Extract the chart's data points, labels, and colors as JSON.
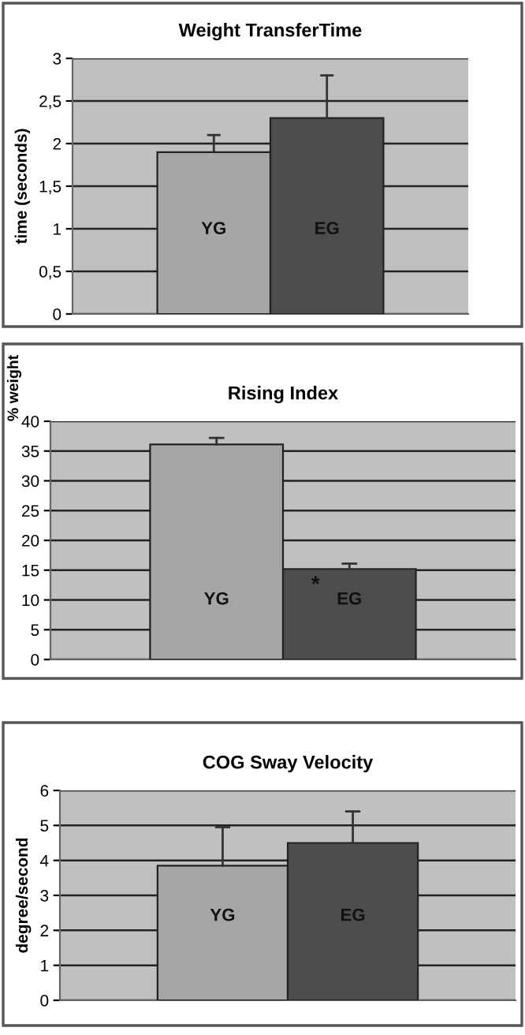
{
  "chart_data": [
    {
      "type": "bar",
      "title": "Weight TransferTime",
      "ylabel": "time (seconds)",
      "categories": [
        "YG",
        "EG"
      ],
      "values": [
        1.9,
        2.3
      ],
      "colors": [
        "#a6a6a6",
        "#4d4d4d"
      ],
      "errors": [
        [
          1.9,
          2.1
        ],
        [
          2.3,
          2.8
        ]
      ],
      "ylim": [
        0,
        3
      ],
      "yticks": [
        0,
        {
          "value": 0.5,
          "label": "0,5"
        },
        1,
        {
          "value": 1.5,
          "label": "1,5"
        },
        2,
        {
          "value": 2.5,
          "label": "2,5"
        },
        3
      ],
      "grid": "y"
    },
    {
      "type": "bar",
      "title": "Rising Index",
      "ylabel": "% weight",
      "categories": [
        "YG",
        "EG"
      ],
      "values": [
        36.1,
        15.2
      ],
      "colors": [
        "#a6a6a6",
        "#4d4d4d"
      ],
      "errors": [
        [
          36.1,
          37.2
        ],
        [
          15.2,
          16.1
        ]
      ],
      "ylim": [
        0,
        40
      ],
      "yticks": [
        0,
        5,
        10,
        15,
        20,
        25,
        30,
        35,
        40
      ],
      "grid": "y",
      "annotations": [
        "*"
      ]
    },
    {
      "type": "bar",
      "title": "COG Sway Velocity",
      "ylabel": "degree/second",
      "categories": [
        "YG",
        "EG"
      ],
      "values": [
        3.85,
        4.5
      ],
      "colors": [
        "#a6a6a6",
        "#4d4d4d"
      ],
      "errors": [
        [
          3.85,
          4.95
        ],
        [
          4.5,
          5.4
        ]
      ],
      "ylim": [
        0,
        6
      ],
      "yticks": [
        0,
        1,
        2,
        3,
        4,
        5,
        6
      ],
      "grid": "y"
    }
  ]
}
